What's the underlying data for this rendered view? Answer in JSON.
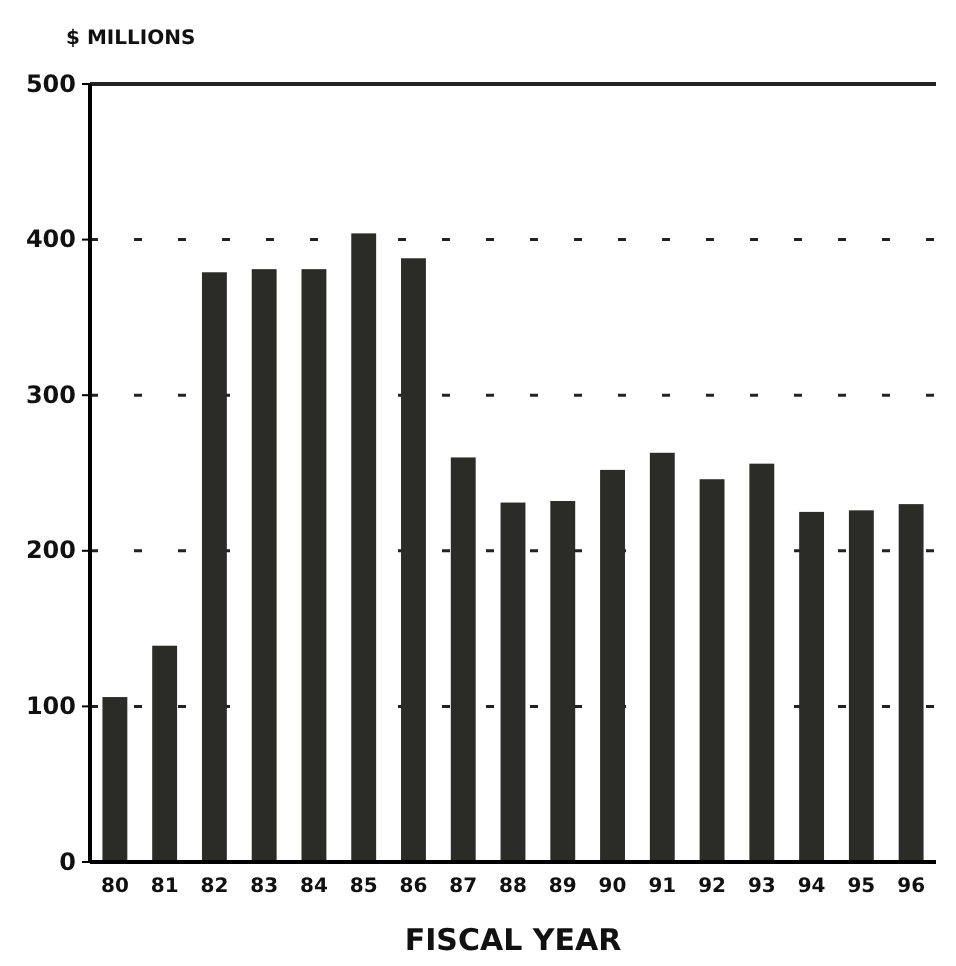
{
  "chart_data": {
    "type": "bar",
    "ylabel": "$ MILLIONS",
    "xlabel": "FISCAL YEAR",
    "categories": [
      "80",
      "81",
      "82",
      "83",
      "84",
      "85",
      "86",
      "87",
      "88",
      "89",
      "90",
      "91",
      "92",
      "93",
      "94",
      "95",
      "96"
    ],
    "values": [
      106,
      139,
      379,
      381,
      381,
      404,
      388,
      260,
      231,
      232,
      252,
      263,
      246,
      256,
      225,
      226,
      230
    ],
    "color": "#2b2b28",
    "ylim": [
      0,
      500
    ],
    "yticks": [
      0,
      100,
      200,
      300,
      400,
      500
    ],
    "grid": "y"
  }
}
